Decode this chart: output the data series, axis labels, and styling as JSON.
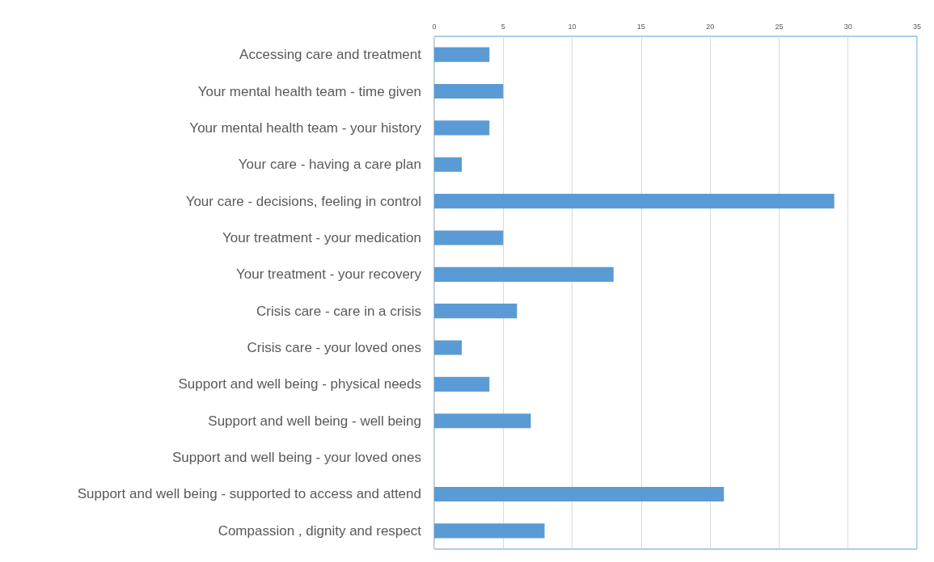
{
  "chart_data": {
    "type": "bar",
    "orientation": "horizontal",
    "categories": [
      "Accessing care and treatment",
      "Your mental health team - time given",
      "Your mental health team - your history",
      "Your care - having a care plan",
      "Your care - decisions, feeling in control",
      "Your treatment - your medication",
      "Your treatment - your recovery",
      "Crisis care - care in a crisis",
      "Crisis care - your loved ones",
      "Support and well being - physical needs",
      "Support and well being - well being",
      "Support and well being - your loved ones",
      "Support and well being - supported to access and attend",
      "Compassion , dignity and respect"
    ],
    "values": [
      4,
      5,
      4,
      2,
      29,
      5,
      13,
      6,
      2,
      4,
      7,
      0,
      21,
      8
    ],
    "color": "#5b9bd5",
    "xlim": [
      0,
      35
    ],
    "xticks": [
      0,
      5,
      10,
      15,
      20,
      25,
      30,
      35
    ],
    "grid": "x"
  }
}
